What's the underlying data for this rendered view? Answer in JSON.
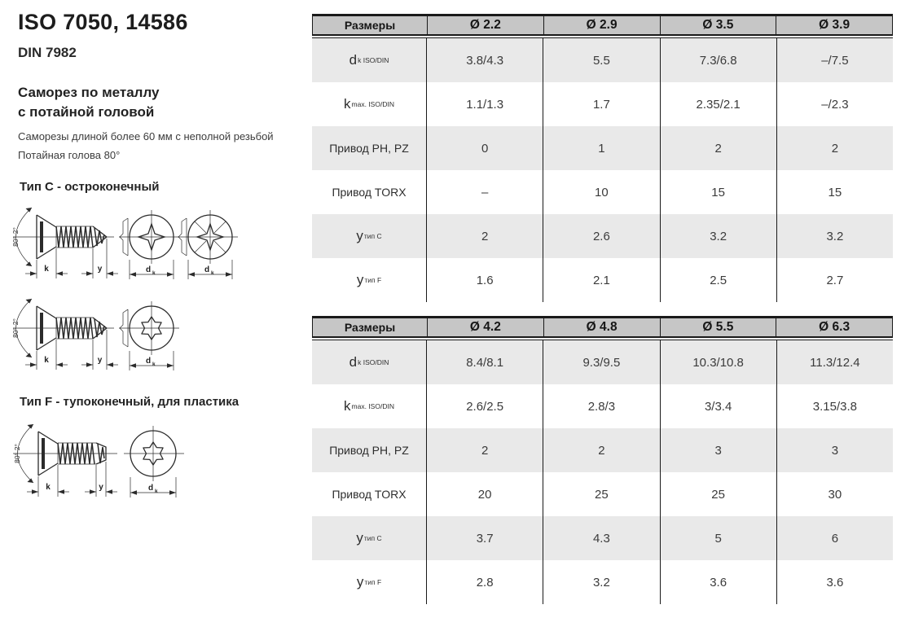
{
  "left": {
    "title": "ISO 7050, 14586",
    "standard": "DIN 7982",
    "name_line1": "Саморез по металлу",
    "name_line2": "с потайной головой",
    "desc1": "Саморезы длиной более 60 мм с неполной резьбой",
    "desc2": "Потайная голова 80°",
    "type_c_heading": "Тип C - остроконечный",
    "type_f_heading": "Тип F - тупоконечный, для пластика"
  },
  "drawing_labels": {
    "angle": "80°-2°",
    "k": "k",
    "y": "y",
    "d_main": "d",
    "d_sub": "k"
  },
  "tables": [
    {
      "header": [
        "Размеры",
        "Ø 2.2",
        "Ø 2.9",
        "Ø 3.5",
        "Ø 3.9"
      ],
      "rows": [
        {
          "label_main": "d",
          "label_sub": "k ISO/DIN",
          "values": [
            "3.8/4.3",
            "5.5",
            "7.3/6.8",
            "–/7.5"
          ]
        },
        {
          "label_main": "k",
          "label_sub": "max. ISO/DIN",
          "values": [
            "1.1/1.3",
            "1.7",
            "2.35/2.1",
            "–/2.3"
          ]
        },
        {
          "label_main": "Привод PH, PZ",
          "label_sub": "",
          "values": [
            "0",
            "1",
            "2",
            "2"
          ]
        },
        {
          "label_main": "Привод TORX",
          "label_sub": "",
          "values": [
            "–",
            "10",
            "15",
            "15"
          ]
        },
        {
          "label_main": "y",
          "label_sub": "тип C",
          "values": [
            "2",
            "2.6",
            "3.2",
            "3.2"
          ]
        },
        {
          "label_main": "y",
          "label_sub": "тип F",
          "values": [
            "1.6",
            "2.1",
            "2.5",
            "2.7"
          ]
        }
      ]
    },
    {
      "header": [
        "Размеры",
        "Ø 4.2",
        "Ø 4.8",
        "Ø 5.5",
        "Ø 6.3"
      ],
      "rows": [
        {
          "label_main": "d",
          "label_sub": "k ISO/DIN",
          "values": [
            "8.4/8.1",
            "9.3/9.5",
            "10.3/10.8",
            "11.3/12.4"
          ]
        },
        {
          "label_main": "k",
          "label_sub": "max. ISO/DIN",
          "values": [
            "2.6/2.5",
            "2.8/3",
            "3/3.4",
            "3.15/3.8"
          ]
        },
        {
          "label_main": "Привод PH, PZ",
          "label_sub": "",
          "values": [
            "2",
            "2",
            "3",
            "3"
          ]
        },
        {
          "label_main": "Привод TORX",
          "label_sub": "",
          "values": [
            "20",
            "25",
            "25",
            "30"
          ]
        },
        {
          "label_main": "y",
          "label_sub": "тип C",
          "values": [
            "3.7",
            "4.3",
            "5",
            "6"
          ]
        },
        {
          "label_main": "y",
          "label_sub": "тип F",
          "values": [
            "2.8",
            "3.2",
            "3.6",
            "3.6"
          ]
        }
      ]
    }
  ],
  "colors": {
    "header_bg": "#c6c6c6",
    "row_shade": "#e9e9e9",
    "table_border": "#1a1a1a",
    "text_dark": "#222222",
    "text_body": "#3b3b3b",
    "drawing_stroke": "#2b2b2b"
  }
}
